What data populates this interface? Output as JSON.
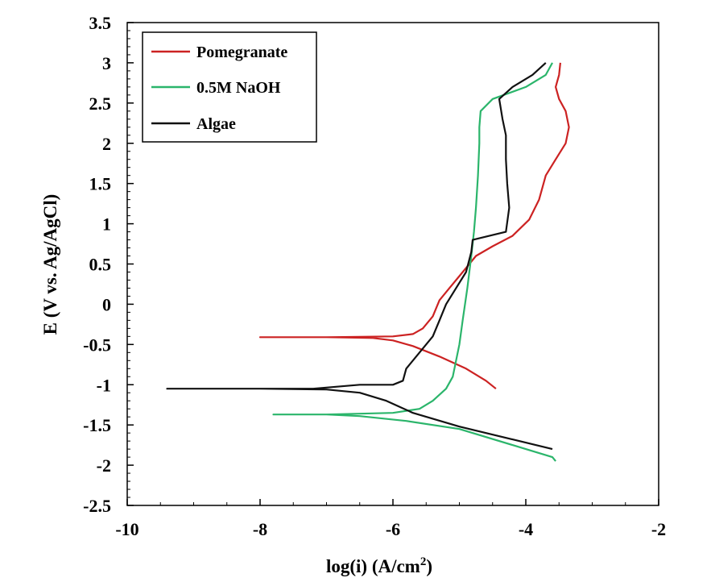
{
  "chart_data": {
    "type": "line",
    "title": "",
    "xlabel": "log(i) (A/cm",
    "xlabel_sup": "2",
    "xlabel_end": ")",
    "ylabel": "E (V vs. Ag/AgCl)",
    "xlim": [
      -10,
      -2
    ],
    "ylim": [
      -2.5,
      3.5
    ],
    "xticks": [
      -10,
      -8,
      -6,
      -4,
      -2
    ],
    "xtick_labels": [
      "-10",
      "-8",
      "-6",
      "-4",
      "-2"
    ],
    "yticks": [
      -2.5,
      -2,
      -1.5,
      -1,
      -0.5,
      0,
      0.5,
      1,
      1.5,
      2,
      2.5,
      3,
      3.5
    ],
    "ytick_labels": [
      "-2.5",
      "-2",
      "-1.5",
      "-1",
      "-0.5",
      "0",
      "0.5",
      "1",
      "1.5",
      "2",
      "2.5",
      "3",
      "3.5"
    ],
    "legend_position": "top-left",
    "series": [
      {
        "name": "Pomegranate",
        "color": "#cc2222",
        "points": [
          [
            -4.45,
            -1.05
          ],
          [
            -4.6,
            -0.95
          ],
          [
            -4.9,
            -0.8
          ],
          [
            -5.3,
            -0.65
          ],
          [
            -5.7,
            -0.52
          ],
          [
            -6.0,
            -0.45
          ],
          [
            -6.3,
            -0.42
          ],
          [
            -7.0,
            -0.41
          ],
          [
            -8.0,
            -0.41
          ],
          [
            -7.0,
            -0.41
          ],
          [
            -6.0,
            -0.4
          ],
          [
            -5.7,
            -0.37
          ],
          [
            -5.55,
            -0.3
          ],
          [
            -5.4,
            -0.15
          ],
          [
            -5.3,
            0.05
          ],
          [
            -5.15,
            0.2
          ],
          [
            -5.0,
            0.35
          ],
          [
            -4.85,
            0.5
          ],
          [
            -4.75,
            0.6
          ],
          [
            -4.5,
            0.72
          ],
          [
            -4.2,
            0.85
          ],
          [
            -3.95,
            1.05
          ],
          [
            -3.8,
            1.3
          ],
          [
            -3.7,
            1.6
          ],
          [
            -3.55,
            1.8
          ],
          [
            -3.4,
            2.0
          ],
          [
            -3.35,
            2.2
          ],
          [
            -3.4,
            2.4
          ],
          [
            -3.5,
            2.55
          ],
          [
            -3.55,
            2.7
          ],
          [
            -3.5,
            2.85
          ],
          [
            -3.48,
            3.0
          ]
        ]
      },
      {
        "name": "0.5M NaOH",
        "color": "#2bb56b",
        "points": [
          [
            -3.55,
            -1.95
          ],
          [
            -3.6,
            -1.9
          ],
          [
            -4.2,
            -1.75
          ],
          [
            -5.0,
            -1.55
          ],
          [
            -5.8,
            -1.45
          ],
          [
            -6.5,
            -1.39
          ],
          [
            -7.0,
            -1.37
          ],
          [
            -7.8,
            -1.37
          ],
          [
            -7.0,
            -1.37
          ],
          [
            -6.0,
            -1.35
          ],
          [
            -5.6,
            -1.3
          ],
          [
            -5.4,
            -1.2
          ],
          [
            -5.2,
            -1.05
          ],
          [
            -5.1,
            -0.9
          ],
          [
            -5.05,
            -0.7
          ],
          [
            -5.0,
            -0.5
          ],
          [
            -4.95,
            -0.2
          ],
          [
            -4.88,
            0.2
          ],
          [
            -4.82,
            0.6
          ],
          [
            -4.78,
            0.9
          ],
          [
            -4.75,
            1.2
          ],
          [
            -4.72,
            1.6
          ],
          [
            -4.7,
            2.0
          ],
          [
            -4.7,
            2.2
          ],
          [
            -4.68,
            2.4
          ],
          [
            -4.5,
            2.55
          ],
          [
            -4.0,
            2.7
          ],
          [
            -3.7,
            2.85
          ],
          [
            -3.6,
            3.0
          ]
        ]
      },
      {
        "name": "Algae",
        "color": "#111111",
        "points": [
          [
            -3.6,
            -1.8
          ],
          [
            -4.2,
            -1.68
          ],
          [
            -5.0,
            -1.52
          ],
          [
            -5.7,
            -1.35
          ],
          [
            -6.1,
            -1.2
          ],
          [
            -6.5,
            -1.1
          ],
          [
            -7.0,
            -1.06
          ],
          [
            -8.0,
            -1.05
          ],
          [
            -9.4,
            -1.05
          ],
          [
            -8.0,
            -1.05
          ],
          [
            -7.2,
            -1.05
          ],
          [
            -6.5,
            -1.0
          ],
          [
            -6.0,
            -1.0
          ],
          [
            -5.85,
            -0.95
          ],
          [
            -5.8,
            -0.8
          ],
          [
            -5.6,
            -0.6
          ],
          [
            -5.4,
            -0.4
          ],
          [
            -5.3,
            -0.2
          ],
          [
            -5.2,
            0.0
          ],
          [
            -5.05,
            0.2
          ],
          [
            -4.9,
            0.4
          ],
          [
            -4.82,
            0.65
          ],
          [
            -4.8,
            0.8
          ],
          [
            -4.55,
            0.85
          ],
          [
            -4.3,
            0.9
          ],
          [
            -4.25,
            1.2
          ],
          [
            -4.28,
            1.5
          ],
          [
            -4.3,
            1.8
          ],
          [
            -4.3,
            2.1
          ],
          [
            -4.35,
            2.3
          ],
          [
            -4.4,
            2.55
          ],
          [
            -4.2,
            2.7
          ],
          [
            -3.9,
            2.85
          ],
          [
            -3.7,
            3.0
          ]
        ]
      }
    ]
  }
}
